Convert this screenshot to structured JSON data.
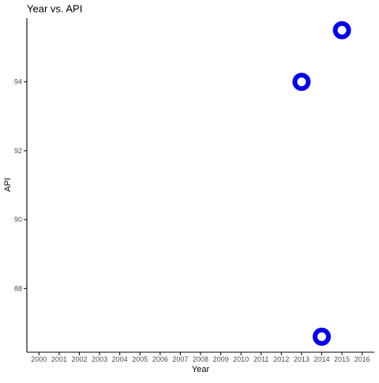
{
  "chart_data": {
    "type": "scatter",
    "title": "Year vs.  API",
    "xlabel": "Year",
    "ylabel": "API",
    "x_ticks": [
      "2000",
      "2001",
      "2002",
      "2003",
      "2004",
      "2005",
      "2006",
      "2007",
      "2008",
      "2009",
      "2010",
      "2011",
      "2012",
      "2013",
      "2014",
      "2015",
      "2016"
    ],
    "y_ticks": [
      88,
      90,
      92,
      94
    ],
    "xlim": [
      1999.4,
      2016.6
    ],
    "ylim": [
      86.15,
      95.85
    ],
    "grid": false,
    "points": [
      {
        "x": 2013,
        "y": 94.0
      },
      {
        "x": 2014,
        "y": 86.6
      },
      {
        "x": 2015,
        "y": 95.5
      }
    ],
    "marker": {
      "shape": "ring",
      "color": "#0000ee",
      "fill": "#ffffff"
    },
    "colors": {
      "axis": "#000000",
      "tick_label": "#4d4d4d",
      "text": "#000000"
    }
  }
}
